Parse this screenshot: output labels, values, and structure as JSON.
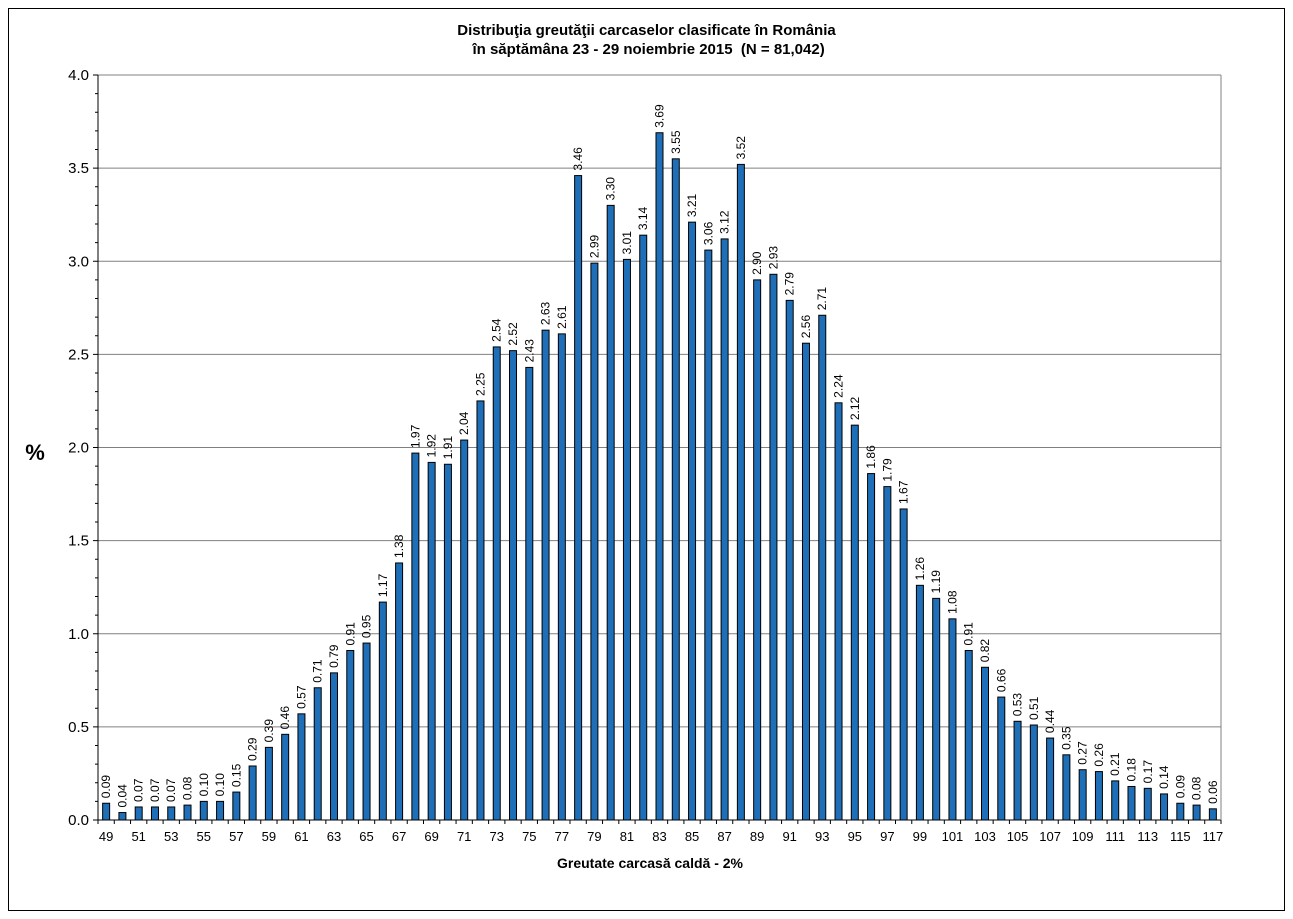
{
  "chart_data": {
    "type": "bar",
    "title_line1": "Distribuţia greutăţii carcaselor clasificate în România",
    "title_line2": " în săptămâna 23 - 29 noiembrie 2015  (N = 81,042)",
    "xlabel": "Greutate carcasă caldă - 2%",
    "ylabel": "%",
    "ylim": [
      0,
      4.0
    ],
    "yticks": [
      "0.0",
      "0.5",
      "1.0",
      "1.5",
      "2.0",
      "2.5",
      "3.0",
      "3.5",
      "4.0"
    ],
    "grid": true,
    "bar_color": "#1f6fb8",
    "categories": [
      49,
      50,
      51,
      52,
      53,
      54,
      55,
      56,
      57,
      58,
      59,
      60,
      61,
      62,
      63,
      64,
      65,
      66,
      67,
      68,
      69,
      70,
      71,
      72,
      73,
      74,
      75,
      76,
      77,
      78,
      79,
      80,
      81,
      82,
      83,
      84,
      85,
      86,
      87,
      88,
      89,
      90,
      91,
      92,
      93,
      94,
      95,
      96,
      97,
      98,
      99,
      100,
      101,
      102,
      103,
      104,
      105,
      106,
      107,
      108,
      109,
      110,
      111,
      112,
      113,
      114,
      115,
      116,
      117
    ],
    "xtick_labels": [
      "49",
      "51",
      "53",
      "55",
      "57",
      "59",
      "61",
      "63",
      "65",
      "67",
      "69",
      "71",
      "73",
      "75",
      "77",
      "79",
      "81",
      "83",
      "85",
      "87",
      "89",
      "91",
      "93",
      "95",
      "97",
      "99",
      "101",
      "103",
      "105",
      "107",
      "109",
      "111",
      "113",
      "115",
      "117"
    ],
    "values": [
      0.09,
      0.04,
      0.07,
      0.07,
      0.07,
      0.08,
      0.1,
      0.1,
      0.15,
      0.29,
      0.39,
      0.46,
      0.57,
      0.71,
      0.79,
      0.91,
      0.95,
      1.17,
      1.38,
      1.97,
      1.92,
      1.91,
      2.04,
      2.25,
      2.54,
      2.52,
      2.43,
      2.63,
      2.61,
      3.46,
      2.99,
      3.3,
      3.01,
      3.14,
      3.69,
      3.55,
      3.21,
      3.06,
      3.12,
      3.52,
      2.9,
      2.93,
      2.79,
      2.56,
      2.71,
      2.24,
      2.12,
      1.86,
      1.79,
      1.67,
      1.26,
      1.19,
      1.08,
      0.91,
      0.82,
      0.66,
      0.53,
      0.51,
      0.44,
      0.35,
      0.27,
      0.26,
      0.21,
      0.18,
      0.17,
      0.14,
      0.09,
      0.08,
      0.06
    ],
    "value_labels": [
      "0.09",
      "0.04",
      "0.07",
      "0.07",
      "0.07",
      "0.08",
      "0.10",
      "0.10",
      "0.15",
      "0.29",
      "0.39",
      "0.46",
      "0.57",
      "0.71",
      "0.79",
      "0.91",
      "0.95",
      "1.17",
      "1.38",
      "1.97",
      "1.92",
      "1.91",
      "2.04",
      "2.25",
      "2.54",
      "2.52",
      "2.43",
      "2.63",
      "2.61",
      "3.46",
      "2.99",
      "3.30",
      "3.01",
      "3.14",
      "3.69",
      "3.55",
      "3.21",
      "3.06",
      "3.12",
      "3.52",
      "2.90",
      "2.93",
      "2.79",
      "2.56",
      "2.71",
      "2.24",
      "2.12",
      "1.86",
      "1.79",
      "1.67",
      "1.26",
      "1.19",
      "1.08",
      "0.91",
      "0.82",
      "0.66",
      "0.53",
      "0.51",
      "0.44",
      "0.35",
      "0.27",
      "0.26",
      "0.21",
      "0.18",
      "0.17",
      "0.14",
      "0.09",
      "0.08",
      "0.06"
    ]
  }
}
